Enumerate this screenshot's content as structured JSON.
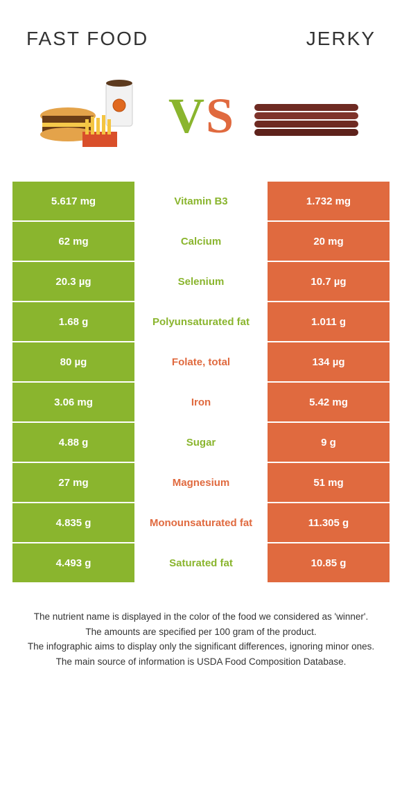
{
  "colors": {
    "left": "#8ab52e",
    "right": "#e06a3f",
    "background": "#ffffff",
    "text": "#333333",
    "cell_text": "#ffffff"
  },
  "titles": {
    "left": "Fast food",
    "right": "Jerky"
  },
  "vs": {
    "v": "V",
    "s": "S"
  },
  "rows": [
    {
      "left": "5.617 mg",
      "label": "Vitamin B3",
      "right": "1.732 mg",
      "winner": "left"
    },
    {
      "left": "62 mg",
      "label": "Calcium",
      "right": "20 mg",
      "winner": "left"
    },
    {
      "left": "20.3 µg",
      "label": "Selenium",
      "right": "10.7 µg",
      "winner": "left"
    },
    {
      "left": "1.68 g",
      "label": "Polyunsaturated fat",
      "right": "1.011 g",
      "winner": "left"
    },
    {
      "left": "80 µg",
      "label": "Folate, total",
      "right": "134 µg",
      "winner": "right"
    },
    {
      "left": "3.06 mg",
      "label": "Iron",
      "right": "5.42 mg",
      "winner": "right"
    },
    {
      "left": "4.88 g",
      "label": "Sugar",
      "right": "9 g",
      "winner": "left"
    },
    {
      "left": "27 mg",
      "label": "Magnesium",
      "right": "51 mg",
      "winner": "right"
    },
    {
      "left": "4.835 g",
      "label": "Monounsaturated fat",
      "right": "11.305 g",
      "winner": "right"
    },
    {
      "left": "4.493 g",
      "label": "Saturated fat",
      "right": "10.85 g",
      "winner": "left"
    }
  ],
  "notes": [
    "The nutrient name is displayed in the color of the food we considered as 'winner'.",
    "The amounts are specified per 100 gram of the product.",
    "The infographic aims to display only the significant differences, ignoring minor ones.",
    "The main source of information is USDA Food Composition Database."
  ]
}
